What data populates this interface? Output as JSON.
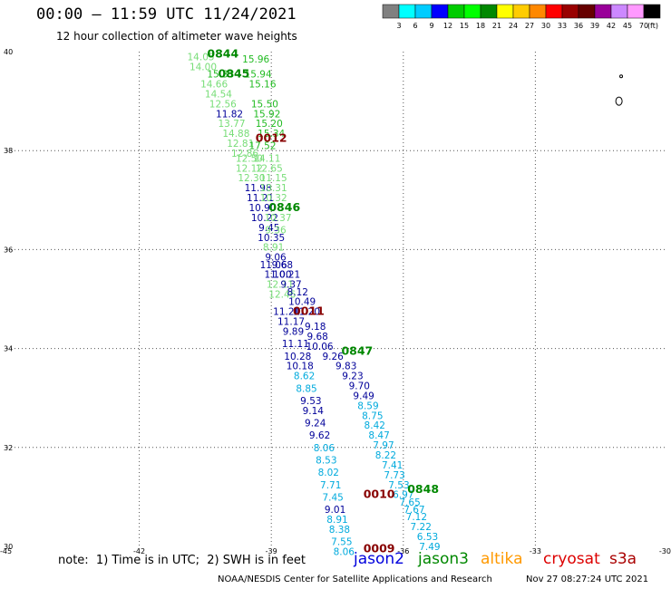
{
  "header": {
    "title": "00:00 — 11:59 UTC 11/24/2021",
    "subtitle": "12 hour collection of altimeter wave heights"
  },
  "legend": {
    "colors": [
      "#808080",
      "#00ffff",
      "#00ccff",
      "#0000ff",
      "#00cc00",
      "#00ff00",
      "#008800",
      "#ffff00",
      "#ffcc00",
      "#ff8800",
      "#ff0000",
      "#990000",
      "#660000",
      "#990099",
      "#cc88ff",
      "#ff99ff",
      "#000000"
    ],
    "labels": [
      "3",
      "6",
      "9",
      "12",
      "15",
      "18",
      "21",
      "24",
      "27",
      "30",
      "33",
      "36",
      "39",
      "42",
      "45",
      "70"
    ],
    "unit": "(ft)"
  },
  "footer": {
    "note": "note:  1) Time is in UTC;  2) SWH is in feet",
    "satellites": [
      {
        "name": "jason2",
        "color": "#0000dd"
      },
      {
        "name": "jason3",
        "color": "#008800"
      },
      {
        "name": "altika",
        "color": "#ff9900"
      },
      {
        "name": "cryosat",
        "color": "#dd0000"
      },
      {
        "name": "s3a",
        "color": "#aa0000"
      }
    ],
    "credit": "NOAA/NESDIS Center for Satellite Applications and Research",
    "date": "Nov 27 08:27:24 UTC 2021"
  },
  "chart_data": {
    "type": "scatter",
    "title": "00:00 — 11:59 UTC 11/24/2021",
    "subtitle": "12 hour collection of altimeter wave heights",
    "xlim": [
      -45,
      -30
    ],
    "ylim": [
      30,
      40
    ],
    "x_ticks": [
      "-45",
      "-42",
      "-39",
      "-36",
      "-33",
      "-30"
    ],
    "y_ticks": [
      "30",
      "32",
      "34",
      "36",
      "38",
      "40"
    ],
    "grid": true,
    "units": "ft",
    "observations": [
      {
        "lon": -40.6,
        "lat": 39.9,
        "v": "14.05",
        "c": "#77dd77"
      },
      {
        "lon": -39.35,
        "lat": 39.85,
        "v": "15.96",
        "c": "#22bb22"
      },
      {
        "lon": -40.55,
        "lat": 39.7,
        "v": "14.00",
        "c": "#77dd77"
      },
      {
        "lon": -40.15,
        "lat": 39.55,
        "v": "15.33",
        "c": "#22bb22"
      },
      {
        "lon": -39.3,
        "lat": 39.55,
        "v": "15.94",
        "c": "#22bb22"
      },
      {
        "lon": -40.3,
        "lat": 39.35,
        "v": "14.66",
        "c": "#77dd77"
      },
      {
        "lon": -39.2,
        "lat": 39.35,
        "v": "15.16",
        "c": "#22bb22"
      },
      {
        "lon": -40.2,
        "lat": 39.15,
        "v": "14.54",
        "c": "#77dd77"
      },
      {
        "lon": -39.15,
        "lat": 38.95,
        "v": "15.50",
        "c": "#22bb22"
      },
      {
        "lon": -40.1,
        "lat": 38.95,
        "v": "12.56",
        "c": "#77dd77"
      },
      {
        "lon": -39.95,
        "lat": 38.75,
        "v": "11.82",
        "c": "#000099"
      },
      {
        "lon": -39.1,
        "lat": 38.75,
        "v": "15.92",
        "c": "#22bb22"
      },
      {
        "lon": -39.9,
        "lat": 38.55,
        "v": "13.77",
        "c": "#77dd77"
      },
      {
        "lon": -39.05,
        "lat": 38.55,
        "v": "15.20",
        "c": "#22bb22"
      },
      {
        "lon": -39.8,
        "lat": 38.35,
        "v": "14.88",
        "c": "#77dd77"
      },
      {
        "lon": -39.0,
        "lat": 38.35,
        "v": "15.34",
        "c": "#22bb22"
      },
      {
        "lon": -39.7,
        "lat": 38.15,
        "v": "12.81",
        "c": "#77dd77"
      },
      {
        "lon": -39.2,
        "lat": 38.1,
        "v": "17.52",
        "c": "#22bb22"
      },
      {
        "lon": -39.6,
        "lat": 37.95,
        "v": "12.86",
        "c": "#77dd77"
      },
      {
        "lon": -39.5,
        "lat": 37.85,
        "v": "12.50",
        "c": "#77dd77"
      },
      {
        "lon": -39.1,
        "lat": 37.85,
        "v": "14.11",
        "c": "#77dd77"
      },
      {
        "lon": -39.5,
        "lat": 37.65,
        "v": "12.12",
        "c": "#77dd77"
      },
      {
        "lon": -39.05,
        "lat": 37.65,
        "v": "12.65",
        "c": "#77dd77"
      },
      {
        "lon": -39.45,
        "lat": 37.45,
        "v": "12.30",
        "c": "#77dd77"
      },
      {
        "lon": -38.95,
        "lat": 37.45,
        "v": "11.15",
        "c": "#77dd77"
      },
      {
        "lon": -39.3,
        "lat": 37.25,
        "v": "11.98",
        "c": "#000099"
      },
      {
        "lon": -38.95,
        "lat": 37.25,
        "v": "10.31",
        "c": "#77dd77"
      },
      {
        "lon": -39.25,
        "lat": 37.05,
        "v": "11.21",
        "c": "#000099"
      },
      {
        "lon": -38.95,
        "lat": 37.05,
        "v": "10.32",
        "c": "#77dd77"
      },
      {
        "lon": -39.2,
        "lat": 36.85,
        "v": "10.90",
        "c": "#000099"
      },
      {
        "lon": -39.15,
        "lat": 36.65,
        "v": "10.22",
        "c": "#000099"
      },
      {
        "lon": -38.85,
        "lat": 36.65,
        "v": "10.37",
        "c": "#77dd77"
      },
      {
        "lon": -39.05,
        "lat": 36.45,
        "v": "9.45",
        "c": "#000099"
      },
      {
        "lon": -38.9,
        "lat": 36.4,
        "v": "9.36",
        "c": "#77dd77"
      },
      {
        "lon": -39.0,
        "lat": 36.25,
        "v": "10.35",
        "c": "#000099"
      },
      {
        "lon": -38.95,
        "lat": 36.05,
        "v": "8.91",
        "c": "#77dd77"
      },
      {
        "lon": -38.9,
        "lat": 35.85,
        "v": "9.06",
        "c": "#000099"
      },
      {
        "lon": -38.95,
        "lat": 35.7,
        "v": "11.06",
        "c": "#000099"
      },
      {
        "lon": -38.75,
        "lat": 35.7,
        "v": "9.68",
        "c": "#000099"
      },
      {
        "lon": -38.85,
        "lat": 35.5,
        "v": "11.00",
        "c": "#000099"
      },
      {
        "lon": -38.65,
        "lat": 35.5,
        "v": "10.21",
        "c": "#000099"
      },
      {
        "lon": -38.8,
        "lat": 35.3,
        "v": "12.11",
        "c": "#77dd77"
      },
      {
        "lon": -38.55,
        "lat": 35.3,
        "v": "9.37",
        "c": "#000099"
      },
      {
        "lon": -38.75,
        "lat": 35.1,
        "v": "12.46",
        "c": "#77dd77"
      },
      {
        "lon": -38.4,
        "lat": 35.15,
        "v": "8.12",
        "c": "#000099"
      },
      {
        "lon": -38.3,
        "lat": 34.95,
        "v": "10.49",
        "c": "#000099"
      },
      {
        "lon": -38.65,
        "lat": 34.75,
        "v": "11.21",
        "c": "#000099"
      },
      {
        "lon": -38.2,
        "lat": 34.75,
        "v": "11.20",
        "c": "#000099"
      },
      {
        "lon": -38.55,
        "lat": 34.55,
        "v": "11.17",
        "c": "#000099"
      },
      {
        "lon": -38.0,
        "lat": 34.45,
        "v": "9.18",
        "c": "#000099"
      },
      {
        "lon": -38.5,
        "lat": 34.35,
        "v": "9.89",
        "c": "#000099"
      },
      {
        "lon": -37.95,
        "lat": 34.25,
        "v": "9.68",
        "c": "#000099"
      },
      {
        "lon": -38.45,
        "lat": 34.1,
        "v": "11.11",
        "c": "#000099"
      },
      {
        "lon": -37.9,
        "lat": 34.05,
        "v": "10.06",
        "c": "#000099"
      },
      {
        "lon": -38.4,
        "lat": 33.85,
        "v": "10.28",
        "c": "#000099"
      },
      {
        "lon": -37.6,
        "lat": 33.85,
        "v": "9.26",
        "c": "#000099"
      },
      {
        "lon": -38.35,
        "lat": 33.65,
        "v": "10.18",
        "c": "#000099"
      },
      {
        "lon": -37.3,
        "lat": 33.65,
        "v": "9.83",
        "c": "#000099"
      },
      {
        "lon": -38.25,
        "lat": 33.45,
        "v": "8.62",
        "c": "#00aadd"
      },
      {
        "lon": -37.15,
        "lat": 33.45,
        "v": "9.23",
        "c": "#000099"
      },
      {
        "lon": -37.0,
        "lat": 33.25,
        "v": "9.70",
        "c": "#000099"
      },
      {
        "lon": -38.2,
        "lat": 33.2,
        "v": "8.85",
        "c": "#00aadd"
      },
      {
        "lon": -36.9,
        "lat": 33.05,
        "v": "9.49",
        "c": "#000099"
      },
      {
        "lon": -38.1,
        "lat": 32.95,
        "v": "9.53",
        "c": "#000099"
      },
      {
        "lon": -36.8,
        "lat": 32.85,
        "v": "8.59",
        "c": "#00aadd"
      },
      {
        "lon": -38.05,
        "lat": 32.75,
        "v": "9.14",
        "c": "#000099"
      },
      {
        "lon": -36.7,
        "lat": 32.65,
        "v": "8.75",
        "c": "#00aadd"
      },
      {
        "lon": -38.0,
        "lat": 32.5,
        "v": "9.24",
        "c": "#000099"
      },
      {
        "lon": -36.65,
        "lat": 32.45,
        "v": "8.42",
        "c": "#00aadd"
      },
      {
        "lon": -36.55,
        "lat": 32.25,
        "v": "8.47",
        "c": "#00aadd"
      },
      {
        "lon": -37.9,
        "lat": 32.25,
        "v": "9.62",
        "c": "#000099"
      },
      {
        "lon": -36.45,
        "lat": 32.05,
        "v": "7.97",
        "c": "#00aadd"
      },
      {
        "lon": -37.8,
        "lat": 32.0,
        "v": "8.06",
        "c": "#00aadd"
      },
      {
        "lon": -36.4,
        "lat": 31.85,
        "v": "8.22",
        "c": "#00aadd"
      },
      {
        "lon": -37.75,
        "lat": 31.75,
        "v": "8.53",
        "c": "#00aadd"
      },
      {
        "lon": -36.25,
        "lat": 31.65,
        "v": "7.41",
        "c": "#00aadd"
      },
      {
        "lon": -37.7,
        "lat": 31.5,
        "v": "8.02",
        "c": "#00aadd"
      },
      {
        "lon": -36.2,
        "lat": 31.45,
        "v": "7.73",
        "c": "#00aadd"
      },
      {
        "lon": -37.65,
        "lat": 31.25,
        "v": "7.71",
        "c": "#00aadd"
      },
      {
        "lon": -36.1,
        "lat": 31.25,
        "v": "7.53",
        "c": "#00aadd"
      },
      {
        "lon": -36.0,
        "lat": 31.05,
        "v": "6.97",
        "c": "#00aadd"
      },
      {
        "lon": -37.6,
        "lat": 31.0,
        "v": "7.45",
        "c": "#00aadd"
      },
      {
        "lon": -35.85,
        "lat": 30.9,
        "v": "7.65",
        "c": "#00aadd"
      },
      {
        "lon": -37.55,
        "lat": 30.75,
        "v": "9.01",
        "c": "#000099"
      },
      {
        "lon": -35.75,
        "lat": 30.75,
        "v": "7.67",
        "c": "#00aadd"
      },
      {
        "lon": -37.5,
        "lat": 30.55,
        "v": "8.91",
        "c": "#00aadd"
      },
      {
        "lon": -35.7,
        "lat": 30.6,
        "v": "7.12",
        "c": "#00aadd"
      },
      {
        "lon": -35.6,
        "lat": 30.4,
        "v": "7.22",
        "c": "#00aadd"
      },
      {
        "lon": -37.45,
        "lat": 30.35,
        "v": "8.38",
        "c": "#00aadd"
      },
      {
        "lon": -35.45,
        "lat": 30.2,
        "v": "6.53",
        "c": "#00aadd"
      },
      {
        "lon": -37.4,
        "lat": 30.1,
        "v": "7.55",
        "c": "#00aadd"
      },
      {
        "lon": -35.4,
        "lat": 30.0,
        "v": "7.49",
        "c": "#00aadd"
      },
      {
        "lon": -37.35,
        "lat": 29.9,
        "v": "8.06",
        "c": "#00aadd"
      }
    ],
    "time_labels": [
      {
        "lon": -40.1,
        "lat": 39.95,
        "t": "0844",
        "c": "#008800"
      },
      {
        "lon": -39.85,
        "lat": 39.55,
        "t": "0845",
        "c": "#008800"
      },
      {
        "lon": -39.0,
        "lat": 38.25,
        "t": "0012",
        "c": "#880000"
      },
      {
        "lon": -38.7,
        "lat": 36.85,
        "t": "0846",
        "c": "#008800"
      },
      {
        "lon": -38.15,
        "lat": 34.75,
        "t": "0011",
        "c": "#880000"
      },
      {
        "lon": -37.05,
        "lat": 33.95,
        "t": "0847",
        "c": "#008800"
      },
      {
        "lon": -36.55,
        "lat": 31.05,
        "t": "0010",
        "c": "#880000"
      },
      {
        "lon": -35.55,
        "lat": 31.15,
        "t": "0848",
        "c": "#008800"
      },
      {
        "lon": -36.55,
        "lat": 29.95,
        "t": "0009",
        "c": "#880000"
      }
    ],
    "islands": [
      {
        "lon": -31.05,
        "lat": 39.5
      },
      {
        "lon": -31.1,
        "lat": 39.0
      }
    ]
  }
}
